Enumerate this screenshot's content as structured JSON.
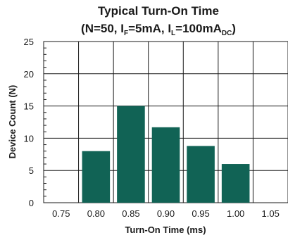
{
  "chart_data": {
    "type": "bar",
    "title": "Typical Turn-On Time",
    "subtitle": {
      "parts": [
        {
          "text": "(N=50, I"
        },
        {
          "text": "F",
          "sub": true
        },
        {
          "text": "=5mA, I"
        },
        {
          "text": "L",
          "sub": true
        },
        {
          "text": "=100mA"
        },
        {
          "text": "DC",
          "sub": true
        },
        {
          "text": ")"
        }
      ]
    },
    "xlabel": "Turn-On Time (ms)",
    "ylabel": "Device Count (N)",
    "x_ticks": [
      "0.75",
      "0.80",
      "0.85",
      "0.90",
      "0.95",
      "1.00",
      "1.05"
    ],
    "categories": [
      "0.80",
      "0.85",
      "0.90",
      "0.95",
      "1.00"
    ],
    "values": [
      8,
      15,
      11.7,
      8.8,
      6
    ],
    "y_ticks": [
      0,
      5,
      10,
      15,
      20,
      25
    ],
    "ylim": [
      0,
      25
    ],
    "grid": true,
    "bar_color": "#116355",
    "grid_color": "#1a1a1a"
  }
}
